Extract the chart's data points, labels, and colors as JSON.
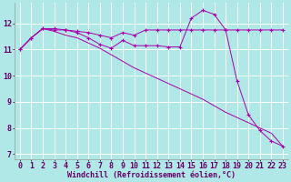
{
  "background_color": "#b0e8e8",
  "grid_color": "#ffffff",
  "line_color": "#aa00aa",
  "xlabel": "Windchill (Refroidissement éolien,°C)",
  "xlabel_fontsize": 6.0,
  "tick_fontsize": 6.0,
  "xlim": [
    -0.5,
    23.5
  ],
  "ylim": [
    6.8,
    12.8
  ],
  "yticks": [
    7,
    8,
    9,
    10,
    11,
    12
  ],
  "xticks": [
    0,
    1,
    2,
    3,
    4,
    5,
    6,
    7,
    8,
    9,
    10,
    11,
    12,
    13,
    14,
    15,
    16,
    17,
    18,
    19,
    20,
    21,
    22,
    23
  ],
  "series1_x": [
    0,
    1,
    2,
    3,
    4,
    5,
    6,
    7,
    8,
    9,
    10,
    11,
    12,
    13,
    14,
    15,
    16,
    17,
    18,
    19,
    20,
    21,
    22,
    23
  ],
  "series1_y": [
    11.0,
    11.45,
    11.8,
    11.75,
    11.75,
    11.7,
    11.65,
    11.55,
    11.45,
    11.65,
    11.55,
    11.75,
    11.75,
    11.75,
    11.75,
    11.75,
    11.75,
    11.75,
    11.75,
    11.75,
    11.75,
    11.75,
    11.75,
    11.75
  ],
  "series2_x": [
    0,
    1,
    2,
    3,
    4,
    5,
    6,
    7,
    8,
    9,
    10,
    11,
    12,
    13,
    14,
    15,
    16,
    17,
    18,
    19,
    20,
    21,
    22,
    23
  ],
  "series2_y": [
    11.0,
    11.45,
    11.8,
    11.8,
    11.75,
    11.65,
    11.45,
    11.2,
    11.05,
    11.35,
    11.15,
    11.15,
    11.15,
    11.1,
    11.1,
    12.2,
    12.5,
    12.35,
    11.75,
    9.8,
    8.5,
    7.9,
    7.5,
    7.3
  ],
  "series3_x": [
    0,
    1,
    2,
    3,
    4,
    5,
    6,
    7,
    8,
    9,
    10,
    11,
    12,
    13,
    14,
    15,
    16,
    17,
    18,
    19,
    20,
    21,
    22,
    23
  ],
  "series3_y": [
    11.0,
    11.45,
    11.8,
    11.7,
    11.55,
    11.45,
    11.25,
    11.05,
    10.8,
    10.55,
    10.3,
    10.1,
    9.9,
    9.7,
    9.5,
    9.3,
    9.1,
    8.85,
    8.6,
    8.4,
    8.2,
    8.0,
    7.8,
    7.3
  ]
}
